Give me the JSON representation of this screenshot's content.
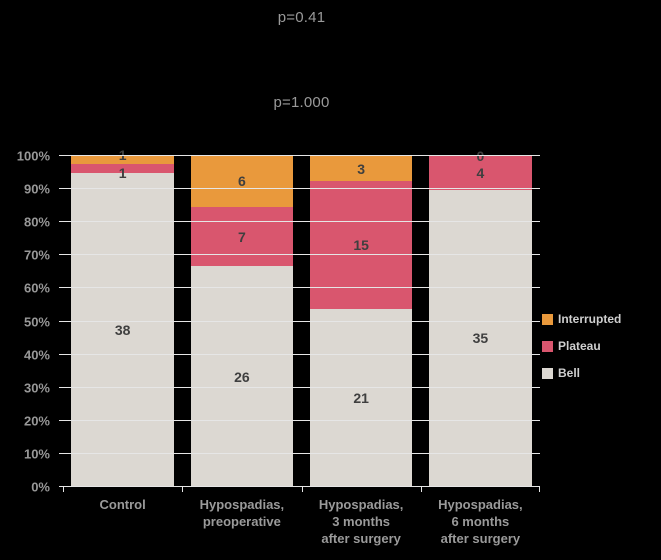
{
  "annotations": {
    "p_top": "p=0.41",
    "p_mid": "p=1.000"
  },
  "chart_data": {
    "type": "bar",
    "subtype": "100-percent-stacked-column",
    "title": "",
    "annotations": [
      "p=0.41",
      "p=1.000"
    ],
    "categories": [
      "Control",
      "Hypospadias,\npreoperative",
      "Hypospadias,\n3 months\nafter surgery",
      "Hypospadias,\n6 months\nafter surgery"
    ],
    "series": [
      {
        "name": "Bell",
        "color": "#dcd8d2",
        "values": [
          38,
          26,
          21,
          35
        ]
      },
      {
        "name": "Plateau",
        "color": "#d9566e",
        "values": [
          1,
          7,
          15,
          4
        ]
      },
      {
        "name": "Interrupted",
        "color": "#e9993c",
        "values": [
          1,
          6,
          3,
          0
        ]
      }
    ],
    "y_axis": {
      "min": 0,
      "max": 100,
      "ticks": [
        "0%",
        "10%",
        "20%",
        "30%",
        "40%",
        "50%",
        "60%",
        "70%",
        "80%",
        "90%",
        "100%"
      ]
    },
    "legend": {
      "position": "right",
      "entries": [
        "Interrupted",
        "Plateau",
        "Bell"
      ]
    },
    "grid": true,
    "colors": {
      "background": "#000000",
      "gridline": "#e6e6e6",
      "axis_text": "#989898",
      "data_label": "#3f3f3f",
      "legend_text": "#cfcfcf"
    }
  }
}
